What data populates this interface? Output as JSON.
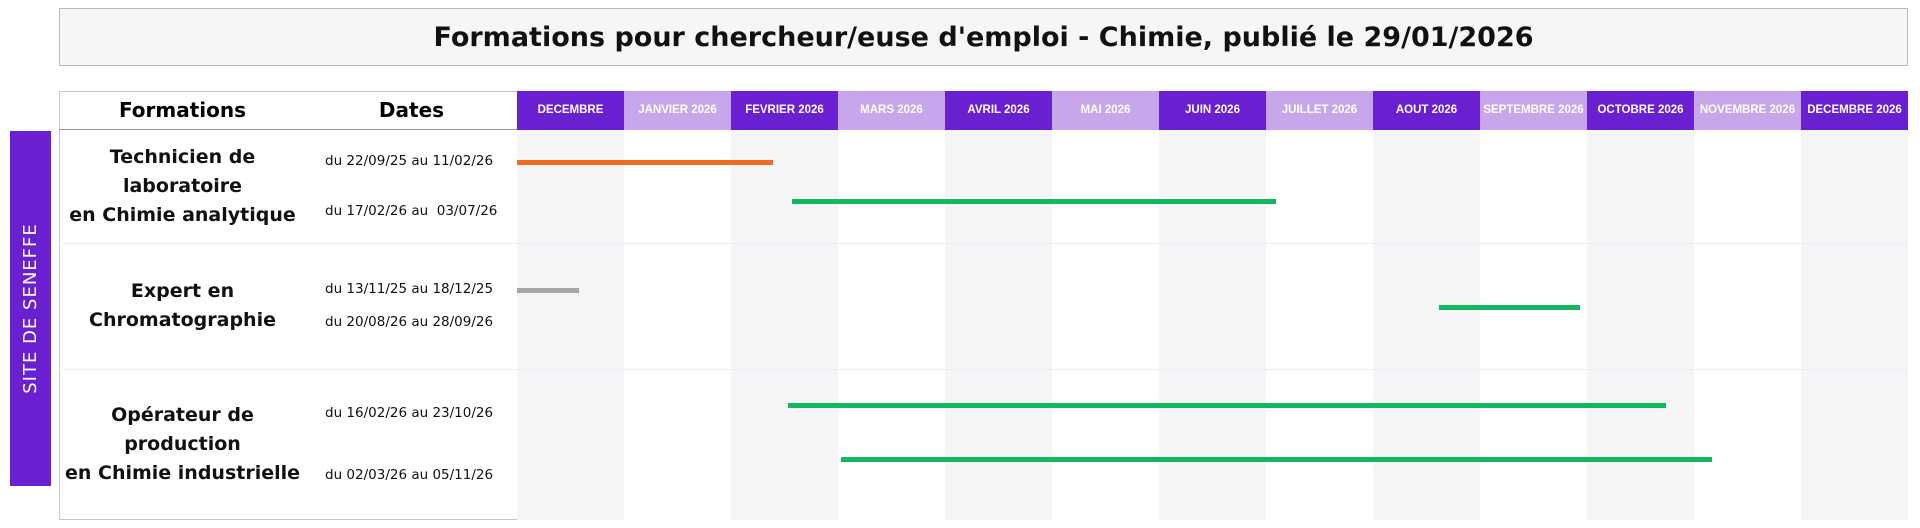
{
  "header": {
    "title": "Formations pour chercheur/euse d'emploi - Chimie, publié le 29/01/2026"
  },
  "side_label": "SITE DE SENEFFE",
  "columns": {
    "formations": "Formations",
    "dates": "Dates"
  },
  "months": [
    "DECEMBRE",
    "JANVIER 2026",
    "FEVRIER 2026",
    "MARS 2026",
    "AVRIL 2026",
    "MAI 2026",
    "JUIN 2026",
    "JUILLET 2026",
    "AOUT 2026",
    "SEPTEMBRE 2026",
    "OCTOBRE 2026",
    "NOVEMBRE 2026",
    "DECEMBRE 2026"
  ],
  "rows": [
    {
      "formation": [
        "Technicien de laboratoire",
        "en Chimie analytique"
      ],
      "sessions": [
        {
          "dates": "du 22/09/25 au 11/02/26",
          "color": "#f26b1d"
        },
        {
          "dates": "du 17/02/26 au  03/07/26",
          "color": "#12b85f"
        }
      ]
    },
    {
      "formation": [
        "Expert en",
        "Chromatographie"
      ],
      "sessions": [
        {
          "dates": "du 13/11/25 au 18/12/25",
          "color": "#a6a6a6"
        },
        {
          "dates": "du 20/08/26 au 28/09/26",
          "color": "#12b85f"
        }
      ]
    },
    {
      "formation": [
        "Opérateur de production",
        "en Chimie industrielle"
      ],
      "sessions": [
        {
          "dates": "du 16/02/26 au 23/10/26",
          "color": "#12b85f"
        },
        {
          "dates": "du 02/03/26 au 05/11/26",
          "color": "#12b85f"
        }
      ]
    }
  ]
}
